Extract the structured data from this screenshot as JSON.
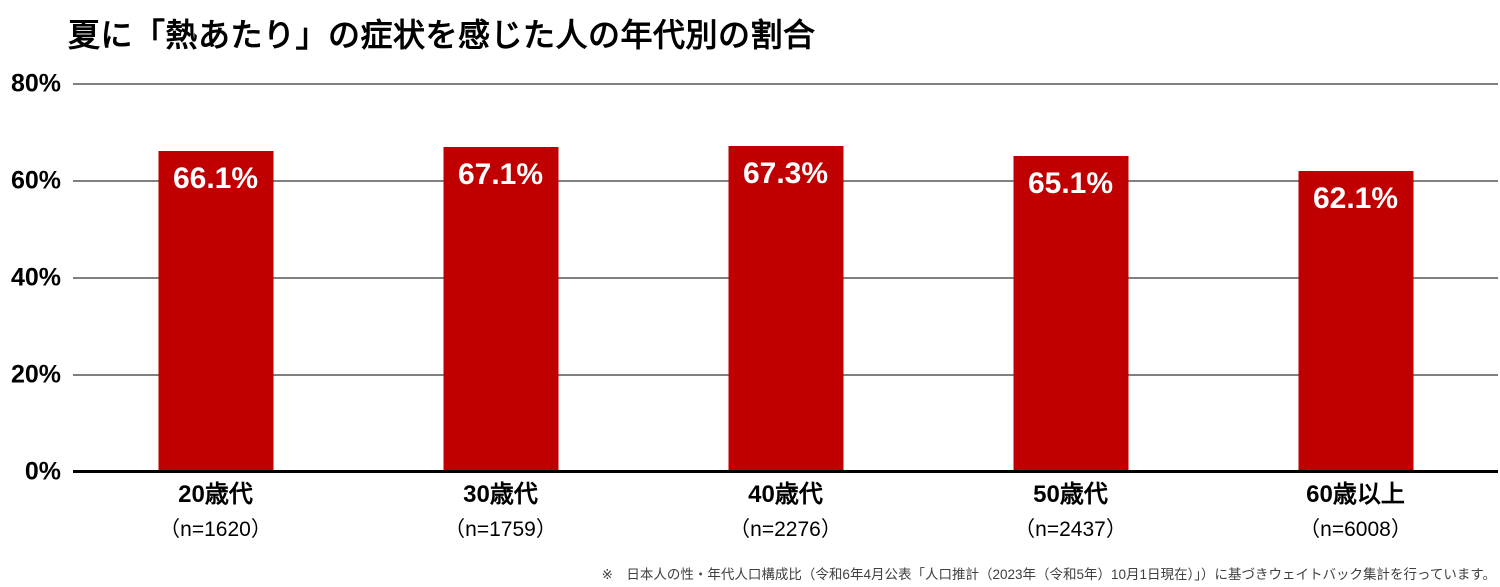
{
  "chart_data": {
    "type": "bar",
    "title": "夏に「熱あたり」の症状を感じた人の年代別の割合",
    "categories": [
      "20歳代",
      "30歳代",
      "40歳代",
      "50歳代",
      "60歳以上"
    ],
    "category_sublabels": [
      "（n=1620）",
      "（n=1759）",
      "（n=2276）",
      "（n=2437）",
      "（n=6008）"
    ],
    "values": [
      66.1,
      67.1,
      67.3,
      65.1,
      62.1
    ],
    "value_labels": [
      "66.1%",
      "67.1%",
      "67.3%",
      "65.1%",
      "62.1%"
    ],
    "ylim": [
      0,
      80
    ],
    "yticks": [
      0,
      20,
      40,
      60,
      80
    ],
    "ytick_labels": [
      "0%",
      "20%",
      "40%",
      "60%",
      "80%"
    ],
    "grid": "horizontal-gridlines-on",
    "legend": "none",
    "bar_color": "#c00000",
    "value_label_color": "#ffffff",
    "gridline_color": "#808080",
    "axis_color": "#000000"
  },
  "footnote": {
    "text": "※　日本人の性・年代人口構成比（令和6年4月公表「人口推計（2023年（令和5年）10月1日現在）」）に基づきウェイトバック集計を行っています。"
  }
}
